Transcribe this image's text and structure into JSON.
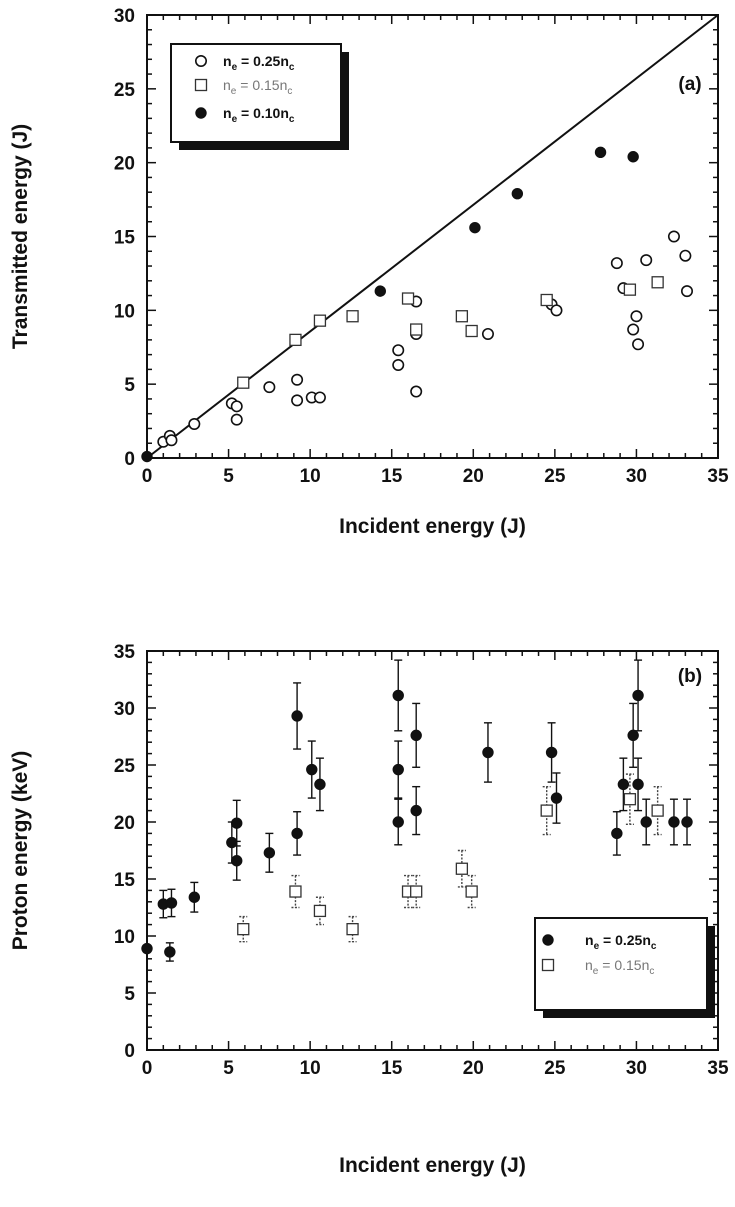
{
  "figure": {
    "panels": [
      "(a)",
      "(b)"
    ]
  },
  "chart_data": [
    {
      "type": "scatter",
      "panel_label": "(a)",
      "xlabel": "Incident energy (J)",
      "ylabel": "Transmitted energy (J)",
      "xlim": [
        0,
        35
      ],
      "ylim": [
        0,
        30
      ],
      "xticks": [
        0,
        5,
        10,
        15,
        20,
        25,
        30,
        35
      ],
      "yticks": [
        0,
        5,
        10,
        15,
        20,
        25,
        30
      ],
      "reference_line": {
        "x": [
          0,
          35
        ],
        "y": [
          0,
          30
        ]
      },
      "legend_position": "top-left",
      "series": [
        {
          "name": "n_e = 0.25n_c",
          "label_main": "n",
          "label_sub": "e",
          "label_rest": " = 0.25n",
          "label_sub2": "c",
          "marker": "open-circle",
          "points": [
            [
              1.0,
              1.1
            ],
            [
              1.4,
              1.5
            ],
            [
              1.5,
              1.2
            ],
            [
              2.9,
              2.3
            ],
            [
              5.2,
              3.7
            ],
            [
              5.5,
              3.5
            ],
            [
              5.5,
              2.6
            ],
            [
              7.5,
              4.8
            ],
            [
              9.2,
              5.3
            ],
            [
              9.2,
              3.9
            ],
            [
              10.1,
              4.1
            ],
            [
              10.6,
              4.1
            ],
            [
              15.4,
              7.3
            ],
            [
              15.4,
              6.3
            ],
            [
              16.5,
              10.6
            ],
            [
              16.5,
              8.4
            ],
            [
              16.5,
              4.5
            ],
            [
              20.9,
              8.4
            ],
            [
              24.8,
              10.4
            ],
            [
              25.1,
              10.0
            ],
            [
              28.8,
              13.2
            ],
            [
              29.2,
              11.5
            ],
            [
              29.8,
              8.7
            ],
            [
              30.0,
              9.6
            ],
            [
              30.1,
              7.7
            ],
            [
              30.6,
              13.4
            ],
            [
              32.3,
              15.0
            ],
            [
              33.0,
              13.7
            ],
            [
              33.1,
              11.3
            ]
          ]
        },
        {
          "name": "n_e = 0.15n_c",
          "label_main": "n",
          "label_sub": "e",
          "label_rest": " = 0.15n",
          "label_sub2": "c",
          "marker": "open-square",
          "points": [
            [
              5.9,
              5.1
            ],
            [
              9.1,
              8.0
            ],
            [
              10.6,
              9.3
            ],
            [
              12.6,
              9.6
            ],
            [
              16.0,
              10.8
            ],
            [
              16.5,
              8.7
            ],
            [
              19.3,
              9.6
            ],
            [
              19.9,
              8.6
            ],
            [
              24.5,
              10.7
            ],
            [
              29.6,
              11.4
            ],
            [
              31.3,
              11.9
            ]
          ]
        },
        {
          "name": "n_e = 0.10n_c",
          "label_main": "n",
          "label_sub": "e",
          "label_rest": " = 0.10n",
          "label_sub2": "c",
          "marker": "filled-circle",
          "points": [
            [
              0.0,
              0.1
            ],
            [
              14.3,
              11.3
            ],
            [
              20.1,
              15.6
            ],
            [
              22.7,
              17.9
            ],
            [
              27.8,
              20.7
            ],
            [
              29.8,
              20.4
            ]
          ]
        }
      ]
    },
    {
      "type": "scatter",
      "panel_label": "(b)",
      "xlabel": "Incident energy (J)",
      "ylabel": "Proton energy (keV)",
      "xlim": [
        0,
        35
      ],
      "ylim": [
        0,
        35
      ],
      "xticks": [
        0,
        5,
        10,
        15,
        20,
        25,
        30,
        35
      ],
      "yticks": [
        0,
        5,
        10,
        15,
        20,
        25,
        30,
        35
      ],
      "legend_position": "bottom-right",
      "series": [
        {
          "name": "n_e = 0.25n_c",
          "label_main": "n",
          "label_sub": "e",
          "label_rest": " = 0.25n",
          "label_sub2": "c",
          "marker": "filled-circle",
          "points": [
            [
              0.0,
              8.9,
              0
            ],
            [
              1.0,
              12.8,
              1.2
            ],
            [
              1.4,
              8.6,
              0.8
            ],
            [
              1.5,
              12.9,
              1.2
            ],
            [
              2.9,
              13.4,
              1.3
            ],
            [
              5.2,
              18.2,
              1.8
            ],
            [
              5.5,
              16.6,
              1.7
            ],
            [
              5.5,
              19.9,
              2.0
            ],
            [
              7.5,
              17.3,
              1.7
            ],
            [
              9.2,
              19.0,
              1.9
            ],
            [
              9.2,
              29.3,
              2.9
            ],
            [
              10.1,
              24.6,
              2.5
            ],
            [
              10.6,
              23.3,
              2.3
            ],
            [
              15.4,
              31.1,
              3.1
            ],
            [
              15.4,
              24.6,
              2.5
            ],
            [
              15.4,
              20.0,
              2.0
            ],
            [
              16.5,
              27.6,
              2.8
            ],
            [
              16.5,
              21.0,
              2.1
            ],
            [
              20.9,
              26.1,
              2.6
            ],
            [
              24.8,
              26.1,
              2.6
            ],
            [
              25.1,
              22.1,
              2.2
            ],
            [
              28.8,
              19.0,
              1.9
            ],
            [
              29.2,
              23.3,
              2.3
            ],
            [
              29.8,
              27.6,
              2.8
            ],
            [
              30.1,
              31.1,
              3.1
            ],
            [
              30.1,
              23.3,
              2.3
            ],
            [
              30.6,
              20.0,
              2.0
            ],
            [
              32.3,
              20.0,
              2.0
            ],
            [
              33.1,
              20.0,
              2.0
            ]
          ]
        },
        {
          "name": "n_e = 0.15n_c",
          "label_main": "n",
          "label_sub": "e",
          "label_rest": " = 0.15n",
          "label_sub2": "c",
          "marker": "open-square",
          "points": [
            [
              5.9,
              10.6,
              1.1
            ],
            [
              9.1,
              13.9,
              1.4
            ],
            [
              10.6,
              12.2,
              1.2
            ],
            [
              12.6,
              10.6,
              1.1
            ],
            [
              16.0,
              13.9,
              1.4
            ],
            [
              16.5,
              13.9,
              1.4
            ],
            [
              19.3,
              15.9,
              1.6
            ],
            [
              19.9,
              13.9,
              1.4
            ],
            [
              24.5,
              21.0,
              2.1
            ],
            [
              29.6,
              22.0,
              2.2
            ],
            [
              31.3,
              21.0,
              2.1
            ]
          ]
        }
      ]
    }
  ]
}
